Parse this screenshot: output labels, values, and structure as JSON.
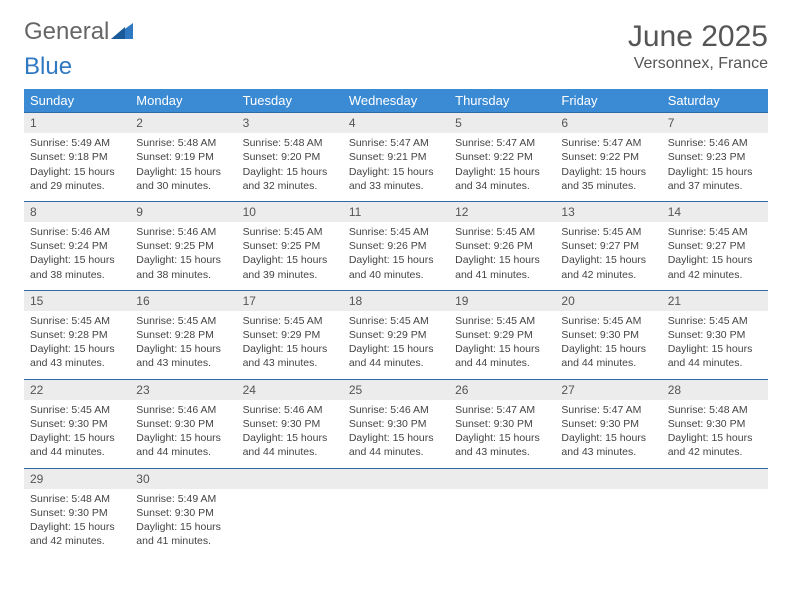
{
  "logo": {
    "text1": "General",
    "text2": "Blue"
  },
  "title": "June 2025",
  "location": "Versonnex, France",
  "header_bg": "#3b8bd4",
  "daynum_bg": "#ececec",
  "rule_color": "#2f6aa8",
  "weekdays": [
    "Sunday",
    "Monday",
    "Tuesday",
    "Wednesday",
    "Thursday",
    "Friday",
    "Saturday"
  ],
  "labels": {
    "sunrise": "Sunrise:",
    "sunset": "Sunset:",
    "daylight": "Daylight:"
  },
  "days": [
    {
      "n": "1",
      "sr": "5:49 AM",
      "ss": "9:18 PM",
      "dl": "15 hours and 29 minutes."
    },
    {
      "n": "2",
      "sr": "5:48 AM",
      "ss": "9:19 PM",
      "dl": "15 hours and 30 minutes."
    },
    {
      "n": "3",
      "sr": "5:48 AM",
      "ss": "9:20 PM",
      "dl": "15 hours and 32 minutes."
    },
    {
      "n": "4",
      "sr": "5:47 AM",
      "ss": "9:21 PM",
      "dl": "15 hours and 33 minutes."
    },
    {
      "n": "5",
      "sr": "5:47 AM",
      "ss": "9:22 PM",
      "dl": "15 hours and 34 minutes."
    },
    {
      "n": "6",
      "sr": "5:47 AM",
      "ss": "9:22 PM",
      "dl": "15 hours and 35 minutes."
    },
    {
      "n": "7",
      "sr": "5:46 AM",
      "ss": "9:23 PM",
      "dl": "15 hours and 37 minutes."
    },
    {
      "n": "8",
      "sr": "5:46 AM",
      "ss": "9:24 PM",
      "dl": "15 hours and 38 minutes."
    },
    {
      "n": "9",
      "sr": "5:46 AM",
      "ss": "9:25 PM",
      "dl": "15 hours and 38 minutes."
    },
    {
      "n": "10",
      "sr": "5:45 AM",
      "ss": "9:25 PM",
      "dl": "15 hours and 39 minutes."
    },
    {
      "n": "11",
      "sr": "5:45 AM",
      "ss": "9:26 PM",
      "dl": "15 hours and 40 minutes."
    },
    {
      "n": "12",
      "sr": "5:45 AM",
      "ss": "9:26 PM",
      "dl": "15 hours and 41 minutes."
    },
    {
      "n": "13",
      "sr": "5:45 AM",
      "ss": "9:27 PM",
      "dl": "15 hours and 42 minutes."
    },
    {
      "n": "14",
      "sr": "5:45 AM",
      "ss": "9:27 PM",
      "dl": "15 hours and 42 minutes."
    },
    {
      "n": "15",
      "sr": "5:45 AM",
      "ss": "9:28 PM",
      "dl": "15 hours and 43 minutes."
    },
    {
      "n": "16",
      "sr": "5:45 AM",
      "ss": "9:28 PM",
      "dl": "15 hours and 43 minutes."
    },
    {
      "n": "17",
      "sr": "5:45 AM",
      "ss": "9:29 PM",
      "dl": "15 hours and 43 minutes."
    },
    {
      "n": "18",
      "sr": "5:45 AM",
      "ss": "9:29 PM",
      "dl": "15 hours and 44 minutes."
    },
    {
      "n": "19",
      "sr": "5:45 AM",
      "ss": "9:29 PM",
      "dl": "15 hours and 44 minutes."
    },
    {
      "n": "20",
      "sr": "5:45 AM",
      "ss": "9:30 PM",
      "dl": "15 hours and 44 minutes."
    },
    {
      "n": "21",
      "sr": "5:45 AM",
      "ss": "9:30 PM",
      "dl": "15 hours and 44 minutes."
    },
    {
      "n": "22",
      "sr": "5:45 AM",
      "ss": "9:30 PM",
      "dl": "15 hours and 44 minutes."
    },
    {
      "n": "23",
      "sr": "5:46 AM",
      "ss": "9:30 PM",
      "dl": "15 hours and 44 minutes."
    },
    {
      "n": "24",
      "sr": "5:46 AM",
      "ss": "9:30 PM",
      "dl": "15 hours and 44 minutes."
    },
    {
      "n": "25",
      "sr": "5:46 AM",
      "ss": "9:30 PM",
      "dl": "15 hours and 44 minutes."
    },
    {
      "n": "26",
      "sr": "5:47 AM",
      "ss": "9:30 PM",
      "dl": "15 hours and 43 minutes."
    },
    {
      "n": "27",
      "sr": "5:47 AM",
      "ss": "9:30 PM",
      "dl": "15 hours and 43 minutes."
    },
    {
      "n": "28",
      "sr": "5:48 AM",
      "ss": "9:30 PM",
      "dl": "15 hours and 42 minutes."
    },
    {
      "n": "29",
      "sr": "5:48 AM",
      "ss": "9:30 PM",
      "dl": "15 hours and 42 minutes."
    },
    {
      "n": "30",
      "sr": "5:49 AM",
      "ss": "9:30 PM",
      "dl": "15 hours and 41 minutes."
    }
  ],
  "grid": {
    "cols": 7,
    "rows": 5,
    "start_offset": 0,
    "total_days": 30
  }
}
